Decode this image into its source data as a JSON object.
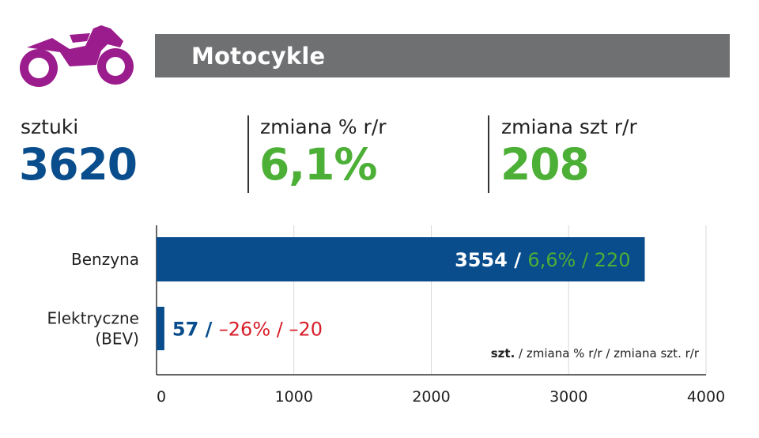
{
  "header": {
    "icon": "motorcycle-icon",
    "icon_color": "#9b1c8c",
    "bar_color": "#6e7072",
    "title": "Motocykle"
  },
  "stats": [
    {
      "label": "sztuki",
      "value": "3620",
      "color": "#0a4d8c"
    },
    {
      "label": "zmiana % r/r",
      "value": "6,1%",
      "color": "#4caf36"
    },
    {
      "label": "zmiana szt r/r",
      "value": "208",
      "color": "#4caf36"
    }
  ],
  "chart_data": {
    "type": "bar",
    "orientation": "horizontal",
    "categories": [
      "Benzyna",
      "Elektryczne\n(BEV)"
    ],
    "values": [
      3554,
      57
    ],
    "bar_color": "#0a4d8c",
    "data_labels": [
      {
        "value": "3554",
        "sep1": " / ",
        "pct": "6,6%",
        "sep2": " / ",
        "abs": "220",
        "value_color": "#ffffff",
        "trend_color": "#4caf36"
      },
      {
        "value": "57",
        "sep1": " / ",
        "pct": "–26%",
        "sep2": " / ",
        "abs": "–20",
        "value_color": "#0a4d8c",
        "trend_color": "#d81e2a"
      }
    ],
    "xlim": [
      0,
      4000
    ],
    "xticks": [
      0,
      1000,
      2000,
      3000,
      4000
    ],
    "grid": true,
    "legend": {
      "bold": "szt.",
      "rest": " / zmiana % r/r / zmiana szt. r/r",
      "position": "bottom-right"
    }
  }
}
